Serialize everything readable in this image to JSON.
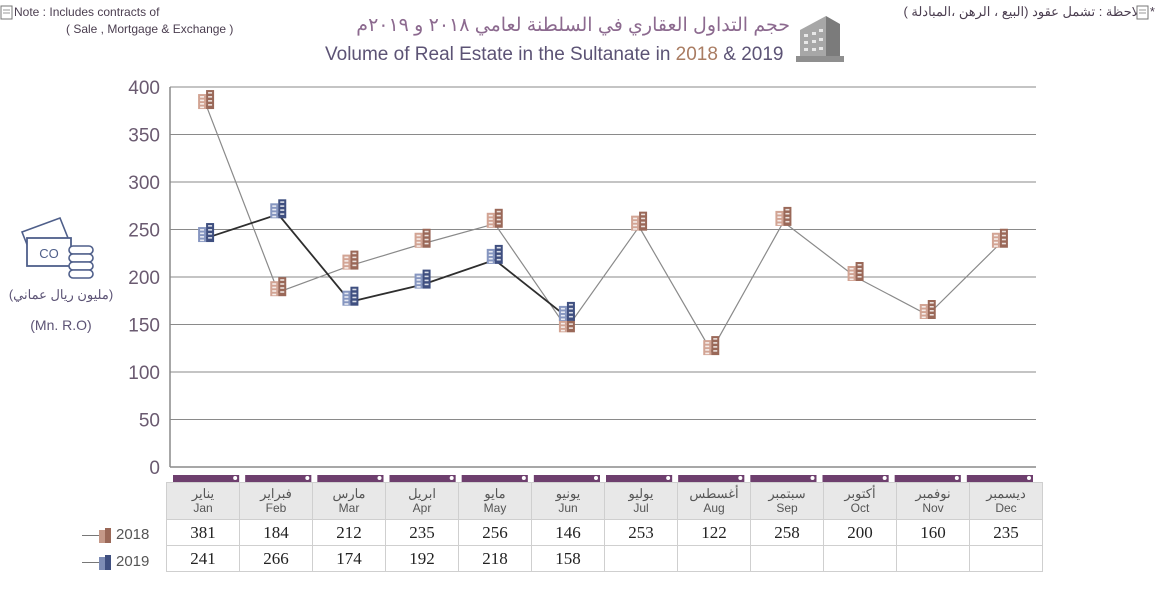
{
  "note": {
    "en_line1": "* Note : Includes contracts of",
    "en_line2": "( Sale , Mortgage & Exchange )",
    "ar": "* ملاحظة : تشمل عقود (البيع ، الرهن ،المبادلة )"
  },
  "title": {
    "ar": "حجم التداول العقاري في السلطنة لعامي ٢٠١٨ و ٢٠١٩م",
    "en_prefix": "Volume of Real Estate in the Sultanate in",
    "year_a": "2018",
    "amp": "&",
    "year_b": "2019"
  },
  "ylabel": {
    "ar": "(مليون ريال عماني)",
    "en": "(Mn. R.O)"
  },
  "colors": {
    "series_2018": "#b07e6e",
    "series_2019": "#4a5a8c",
    "line_2018": "#8a8a8a",
    "line_2019": "#2e2e2e",
    "grid": "#8a8a8a",
    "header_bar": "#6e3f6e"
  },
  "icons": [
    "documents-note-icon",
    "building-icon",
    "money-icon"
  ],
  "chart_data": {
    "type": "line",
    "title": "Volume of Real Estate in the Sultanate in 2018 & 2019",
    "ylabel": "(Mn. R.O)",
    "ylim": [
      0,
      400
    ],
    "yticks": [
      0,
      50,
      100,
      150,
      200,
      250,
      300,
      350,
      400
    ],
    "grid": true,
    "categories": [
      "Jan",
      "Feb",
      "Mar",
      "Apr",
      "May",
      "Jun",
      "Jul",
      "Aug",
      "Sep",
      "Oct",
      "Nov",
      "Dec"
    ],
    "categories_ar": [
      "يناير",
      "فبراير",
      "مارس",
      "ابريل",
      "مايو",
      "يونيو",
      "يوليو",
      "أغسطس",
      "سبتمبر",
      "أكتوبر",
      "نوفمبر",
      "ديسمبر"
    ],
    "series": [
      {
        "name": "2018",
        "values": [
          381,
          184,
          212,
          235,
          256,
          146,
          253,
          122,
          258,
          200,
          160,
          235
        ]
      },
      {
        "name": "2019",
        "values": [
          241,
          266,
          174,
          192,
          218,
          158,
          null,
          null,
          null,
          null,
          null,
          null
        ]
      }
    ]
  },
  "table": {
    "row_labels": [
      "2018",
      "2019"
    ],
    "rows": [
      [
        "381",
        "184",
        "212",
        "235",
        "256",
        "146",
        "253",
        "122",
        "258",
        "200",
        "160",
        "235"
      ],
      [
        "241",
        "266",
        "174",
        "192",
        "218",
        "158",
        "",
        "",
        "",
        "",
        "",
        ""
      ]
    ]
  }
}
